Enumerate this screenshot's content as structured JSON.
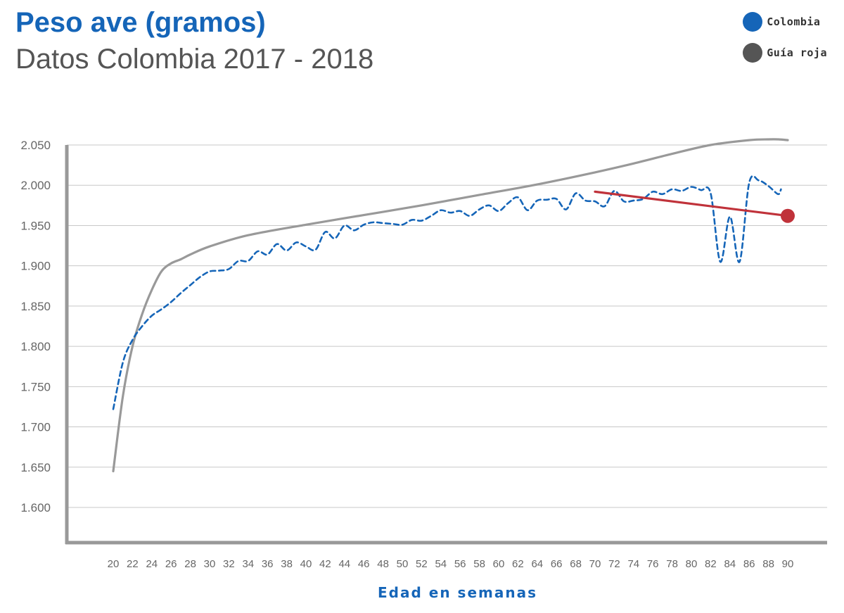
{
  "chart_data": {
    "type": "line",
    "title": "Peso ave (gramos)",
    "subtitle": "Datos Colombia 2017 - 2018",
    "xlabel": "Edad en semanas",
    "ylabel": "",
    "ylim": [
      1550,
      2050
    ],
    "xlim": [
      20,
      90
    ],
    "y_ticks": [
      1600,
      1650,
      1700,
      1750,
      1800,
      1850,
      1900,
      1950,
      2000,
      2050
    ],
    "y_tick_labels": [
      "1.600",
      "1.650",
      "1.700",
      "1.750",
      "1.800",
      "1.850",
      "1.900",
      "1.950",
      "2.000",
      "2.050"
    ],
    "x_ticks": [
      20,
      22,
      24,
      26,
      28,
      30,
      32,
      34,
      36,
      38,
      40,
      42,
      44,
      46,
      48,
      50,
      52,
      54,
      56,
      58,
      60,
      62,
      64,
      66,
      68,
      70,
      72,
      74,
      76,
      78,
      80,
      82,
      84,
      86,
      88,
      90
    ],
    "grid": "horizontal",
    "legend_position": "top-right",
    "series": [
      {
        "name": "Colombia",
        "color": "#1565b8",
        "style": "dashed",
        "x": [
          20,
          21,
          22,
          23,
          24,
          25,
          26,
          27,
          28,
          29,
          30,
          31,
          32,
          33,
          34,
          35,
          36,
          37,
          38,
          39,
          40,
          41,
          42,
          43,
          44,
          45,
          46,
          47,
          48,
          49,
          50,
          51,
          52,
          53,
          54,
          55,
          56,
          57,
          58,
          59,
          60,
          61,
          62,
          63,
          64,
          65,
          66,
          67,
          68,
          69,
          70,
          71,
          72,
          73,
          74,
          75,
          76,
          77,
          78,
          79,
          80,
          81,
          82,
          83,
          84,
          85,
          86,
          87,
          88,
          89,
          89.3
        ],
        "y": [
          1722,
          1780,
          1808,
          1825,
          1838,
          1846,
          1855,
          1866,
          1876,
          1886,
          1893,
          1894,
          1896,
          1906,
          1906,
          1918,
          1914,
          1927,
          1919,
          1929,
          1924,
          1920,
          1942,
          1934,
          1950,
          1944,
          1951,
          1954,
          1953,
          1952,
          1951,
          1957,
          1956,
          1962,
          1969,
          1966,
          1968,
          1962,
          1970,
          1975,
          1968,
          1978,
          1985,
          1969,
          1981,
          1982,
          1983,
          1970,
          1990,
          1981,
          1980,
          1974,
          1993,
          1980,
          1981,
          1983,
          1992,
          1989,
          1995,
          1993,
          1998,
          1994,
          1990,
          1905,
          1961,
          1905,
          2003,
          2006,
          1999,
          1989,
          1995
        ]
      },
      {
        "name": "Guía roja",
        "color": "#999999",
        "style": "solid",
        "x": [
          20,
          21,
          22,
          23,
          24,
          25,
          26,
          27,
          28,
          30,
          34,
          40,
          46,
          52,
          58,
          64,
          70,
          74,
          78,
          82,
          86,
          88,
          89,
          90
        ],
        "y": [
          1645,
          1738,
          1800,
          1840,
          1870,
          1893,
          1903,
          1908,
          1914,
          1924,
          1938,
          1951,
          1963,
          1975,
          1988,
          2001,
          2016,
          2027,
          2039,
          2050,
          2056,
          2057,
          2057,
          2056
        ]
      },
      {
        "name": "",
        "color": "#c0323a",
        "style": "solid",
        "x": [
          70,
          90
        ],
        "y": [
          1992,
          1962
        ]
      }
    ]
  },
  "legend": {
    "items": [
      {
        "label": "Colombia",
        "color": "#1565b8"
      },
      {
        "label": "Guía roja",
        "color": "#555555"
      }
    ]
  }
}
